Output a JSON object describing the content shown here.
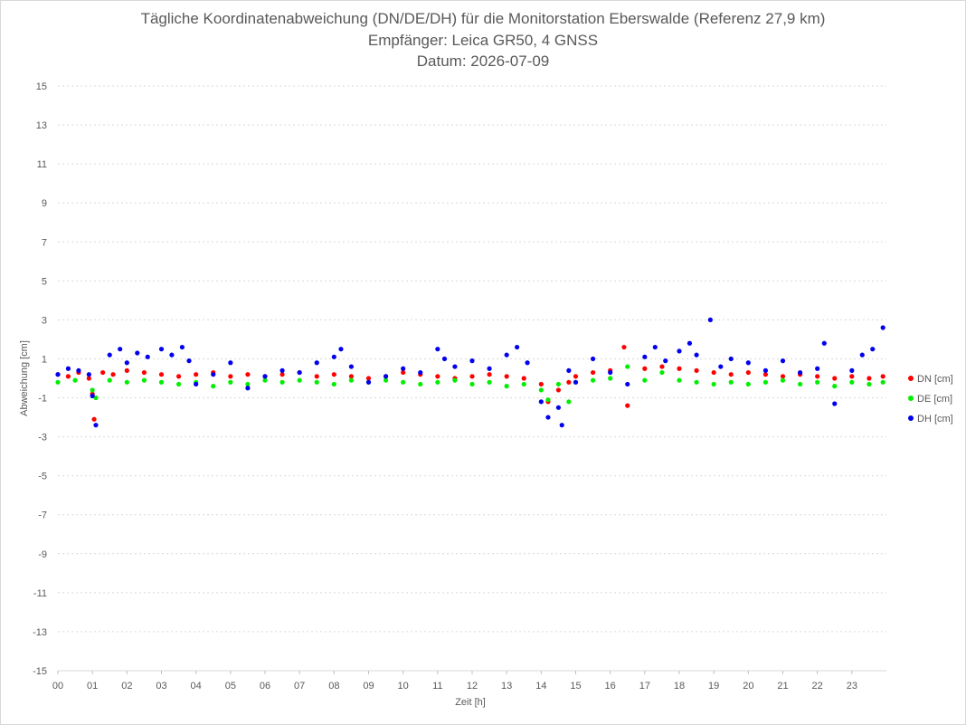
{
  "chart_data": {
    "type": "scatter",
    "title": "Tägliche Koordinatenabweichung (DN/DE/DH) für die Monitorstation Eberswalde (Referenz 27,9 km)",
    "subtitle_1": "Empfänger: Leica GR50, 4 GNSS",
    "subtitle_2": "Datum: 2026-07-09",
    "xlabel": "Zeit [h]",
    "ylabel": "Abweichung [cm]",
    "xlim": [
      0,
      24
    ],
    "ylim": [
      -15,
      15
    ],
    "x_ticks": [
      "00",
      "01",
      "02",
      "03",
      "04",
      "05",
      "06",
      "07",
      "08",
      "09",
      "10",
      "11",
      "12",
      "13",
      "14",
      "15",
      "16",
      "17",
      "18",
      "19",
      "20",
      "21",
      "22",
      "23"
    ],
    "y_ticks": [
      "15",
      "13",
      "11",
      "9",
      "7",
      "5",
      "3",
      "1",
      "-1",
      "-3",
      "-5",
      "-7",
      "-9",
      "-11",
      "-13",
      "-15"
    ],
    "grid": "horizontal dashed",
    "legend_position": "right",
    "series": [
      {
        "name": "DN [cm]",
        "color": "#ff0000",
        "values": [
          [
            0.0,
            0.2
          ],
          [
            0.3,
            0.1
          ],
          [
            0.6,
            0.3
          ],
          [
            0.9,
            0.0
          ],
          [
            1.0,
            -0.8
          ],
          [
            1.05,
            -2.1
          ],
          [
            1.3,
            0.3
          ],
          [
            1.6,
            0.2
          ],
          [
            2.0,
            0.4
          ],
          [
            2.5,
            0.3
          ],
          [
            3.0,
            0.2
          ],
          [
            3.5,
            0.1
          ],
          [
            4.0,
            0.2
          ],
          [
            4.5,
            0.3
          ],
          [
            5.0,
            0.1
          ],
          [
            5.5,
            0.2
          ],
          [
            6.0,
            0.1
          ],
          [
            6.5,
            0.2
          ],
          [
            7.0,
            0.3
          ],
          [
            7.5,
            0.1
          ],
          [
            8.0,
            0.2
          ],
          [
            8.5,
            0.1
          ],
          [
            9.0,
            0.0
          ],
          [
            9.5,
            0.1
          ],
          [
            10.0,
            0.3
          ],
          [
            10.5,
            0.2
          ],
          [
            11.0,
            0.1
          ],
          [
            11.5,
            0.0
          ],
          [
            12.0,
            0.1
          ],
          [
            12.5,
            0.2
          ],
          [
            13.0,
            0.1
          ],
          [
            13.5,
            0.0
          ],
          [
            14.0,
            -0.3
          ],
          [
            14.2,
            -1.2
          ],
          [
            14.5,
            -0.6
          ],
          [
            14.8,
            -0.2
          ],
          [
            15.0,
            0.1
          ],
          [
            15.5,
            0.3
          ],
          [
            16.0,
            0.4
          ],
          [
            16.4,
            1.6
          ],
          [
            16.5,
            -1.4
          ],
          [
            17.0,
            0.5
          ],
          [
            17.5,
            0.6
          ],
          [
            18.0,
            0.5
          ],
          [
            18.5,
            0.4
          ],
          [
            19.0,
            0.3
          ],
          [
            19.5,
            0.2
          ],
          [
            20.0,
            0.3
          ],
          [
            20.5,
            0.2
          ],
          [
            21.0,
            0.1
          ],
          [
            21.5,
            0.2
          ],
          [
            22.0,
            0.1
          ],
          [
            22.5,
            0.0
          ],
          [
            23.0,
            0.1
          ],
          [
            23.5,
            0.0
          ],
          [
            23.9,
            0.1
          ]
        ]
      },
      {
        "name": "DE [cm]",
        "color": "#00ee00",
        "values": [
          [
            0.0,
            -0.2
          ],
          [
            0.5,
            -0.1
          ],
          [
            1.0,
            -0.6
          ],
          [
            1.1,
            -1.0
          ],
          [
            1.5,
            -0.1
          ],
          [
            2.0,
            -0.2
          ],
          [
            2.5,
            -0.1
          ],
          [
            3.0,
            -0.2
          ],
          [
            3.5,
            -0.3
          ],
          [
            4.0,
            -0.2
          ],
          [
            4.5,
            -0.4
          ],
          [
            5.0,
            -0.2
          ],
          [
            5.5,
            -0.3
          ],
          [
            6.0,
            -0.1
          ],
          [
            6.5,
            -0.2
          ],
          [
            7.0,
            -0.1
          ],
          [
            7.5,
            -0.2
          ],
          [
            8.0,
            -0.3
          ],
          [
            8.5,
            -0.1
          ],
          [
            9.0,
            -0.2
          ],
          [
            9.5,
            -0.1
          ],
          [
            10.0,
            -0.2
          ],
          [
            10.5,
            -0.3
          ],
          [
            11.0,
            -0.2
          ],
          [
            11.5,
            -0.1
          ],
          [
            12.0,
            -0.3
          ],
          [
            12.5,
            -0.2
          ],
          [
            13.0,
            -0.4
          ],
          [
            13.5,
            -0.3
          ],
          [
            14.0,
            -0.6
          ],
          [
            14.2,
            -1.1
          ],
          [
            14.5,
            -0.3
          ],
          [
            14.8,
            -1.2
          ],
          [
            15.0,
            -0.2
          ],
          [
            15.5,
            -0.1
          ],
          [
            16.0,
            0.0
          ],
          [
            16.5,
            0.6
          ],
          [
            17.0,
            -0.1
          ],
          [
            17.5,
            0.3
          ],
          [
            18.0,
            -0.1
          ],
          [
            18.5,
            -0.2
          ],
          [
            19.0,
            -0.3
          ],
          [
            19.5,
            -0.2
          ],
          [
            20.0,
            -0.3
          ],
          [
            20.5,
            -0.2
          ],
          [
            21.0,
            -0.1
          ],
          [
            21.5,
            -0.3
          ],
          [
            22.0,
            -0.2
          ],
          [
            22.5,
            -0.4
          ],
          [
            23.0,
            -0.2
          ],
          [
            23.5,
            -0.3
          ],
          [
            23.9,
            -0.2
          ]
        ]
      },
      {
        "name": "DH [cm]",
        "color": "#0000ee",
        "values": [
          [
            0.0,
            0.2
          ],
          [
            0.3,
            0.5
          ],
          [
            0.6,
            0.4
          ],
          [
            0.9,
            0.2
          ],
          [
            1.0,
            -0.9
          ],
          [
            1.1,
            -2.4
          ],
          [
            1.5,
            1.2
          ],
          [
            1.8,
            1.5
          ],
          [
            2.0,
            0.8
          ],
          [
            2.3,
            1.3
          ],
          [
            2.6,
            1.1
          ],
          [
            3.0,
            1.5
          ],
          [
            3.3,
            1.2
          ],
          [
            3.6,
            1.6
          ],
          [
            3.8,
            0.9
          ],
          [
            4.0,
            -0.3
          ],
          [
            4.5,
            0.2
          ],
          [
            5.0,
            0.8
          ],
          [
            5.5,
            -0.5
          ],
          [
            6.0,
            0.1
          ],
          [
            6.5,
            0.4
          ],
          [
            7.0,
            0.3
          ],
          [
            7.5,
            0.8
          ],
          [
            8.0,
            1.1
          ],
          [
            8.2,
            1.5
          ],
          [
            8.5,
            0.6
          ],
          [
            9.0,
            -0.2
          ],
          [
            9.5,
            0.1
          ],
          [
            10.0,
            0.5
          ],
          [
            10.5,
            0.3
          ],
          [
            11.0,
            1.5
          ],
          [
            11.2,
            1.0
          ],
          [
            11.5,
            0.6
          ],
          [
            12.0,
            0.9
          ],
          [
            12.5,
            0.5
          ],
          [
            13.0,
            1.2
          ],
          [
            13.3,
            1.6
          ],
          [
            13.6,
            0.8
          ],
          [
            14.0,
            -1.2
          ],
          [
            14.2,
            -2.0
          ],
          [
            14.5,
            -1.5
          ],
          [
            14.6,
            -2.4
          ],
          [
            14.8,
            0.4
          ],
          [
            15.0,
            -0.2
          ],
          [
            15.5,
            1.0
          ],
          [
            16.0,
            0.3
          ],
          [
            16.5,
            -0.3
          ],
          [
            17.0,
            1.1
          ],
          [
            17.3,
            1.6
          ],
          [
            17.6,
            0.9
          ],
          [
            18.0,
            1.4
          ],
          [
            18.3,
            1.8
          ],
          [
            18.5,
            1.2
          ],
          [
            18.9,
            3.0
          ],
          [
            19.2,
            0.6
          ],
          [
            19.5,
            1.0
          ],
          [
            20.0,
            0.8
          ],
          [
            20.5,
            0.4
          ],
          [
            21.0,
            0.9
          ],
          [
            21.5,
            0.3
          ],
          [
            22.0,
            0.5
          ],
          [
            22.2,
            1.8
          ],
          [
            22.5,
            -1.3
          ],
          [
            23.0,
            0.4
          ],
          [
            23.3,
            1.2
          ],
          [
            23.6,
            1.5
          ],
          [
            23.9,
            2.6
          ]
        ]
      }
    ]
  }
}
